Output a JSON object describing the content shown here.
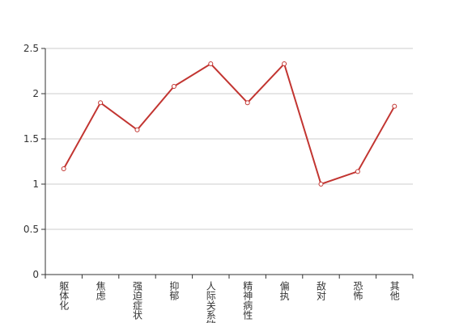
{
  "chart_data": {
    "type": "line",
    "categories": [
      "躯体化",
      "焦虑",
      "强迫症状",
      "抑郁",
      "人际关系敏感",
      "精神病性",
      "偏执",
      "敌对",
      "恐怖",
      "其他"
    ],
    "values": [
      1.17,
      1.9,
      1.6,
      2.08,
      2.33,
      1.9,
      2.33,
      1.0,
      1.14,
      1.86
    ],
    "color": "#c23531",
    "ylim": [
      0,
      2.5
    ],
    "yticks": [
      0,
      0.5,
      1,
      1.5,
      2,
      2.5
    ],
    "grid": true
  }
}
